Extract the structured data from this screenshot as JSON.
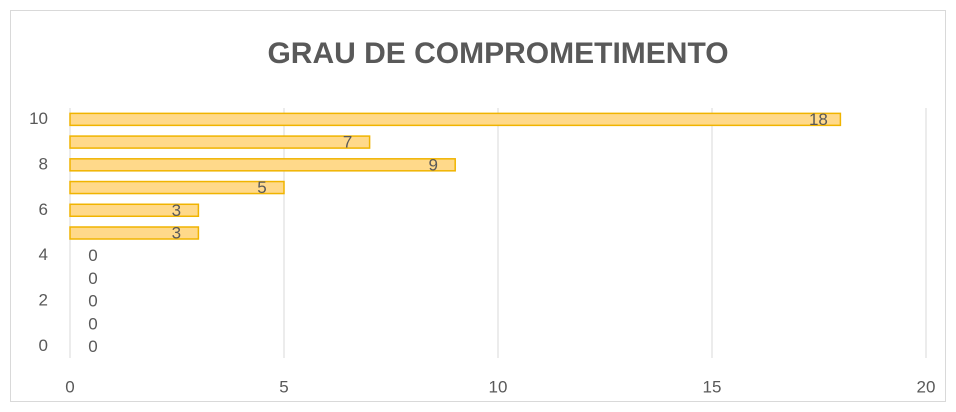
{
  "chart_data": {
    "type": "barh",
    "title": "GRAU DE COMPROMETIMENTO",
    "categories": [
      "0",
      null,
      "2",
      null,
      "4",
      null,
      "6",
      null,
      "8",
      null,
      "10"
    ],
    "values": [
      0,
      0,
      0,
      0,
      0,
      3,
      3,
      5,
      9,
      7,
      18
    ],
    "color": "#ffd98a",
    "edge_color": "#f0b400",
    "xlim": [
      0,
      20
    ],
    "xticks": [
      0,
      5,
      10,
      15,
      20
    ],
    "grid": true
  }
}
